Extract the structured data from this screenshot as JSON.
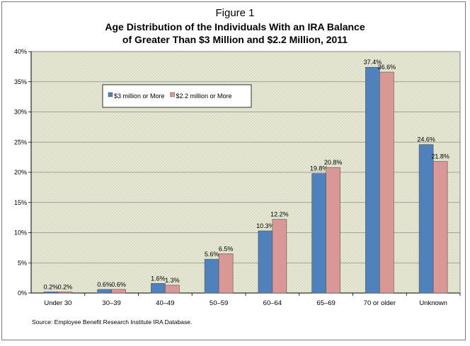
{
  "figure_label": "Figure 1",
  "title_line1": "Age Distribution of the Individuals With an IRA Balance",
  "title_line2": "of Greater Than $3 Million and $2.2 Million, 2011",
  "source": "Source: Employee Benefit Research Institute IRA Database.",
  "colors": {
    "series1": "#4f81bd",
    "series2": "#d99795",
    "plot_background": "#e8ead6"
  },
  "chart_data": {
    "type": "bar",
    "categories": [
      "Under 30",
      "30–39",
      "40–49",
      "50–59",
      "60–64",
      "65–69",
      "70 or older",
      "Unknown"
    ],
    "series": [
      {
        "name": "$3 million or More",
        "values": [
          0.2,
          0.6,
          1.6,
          5.6,
          10.3,
          19.8,
          37.4,
          24.6
        ],
        "labels": [
          "0.2%",
          "0.6%",
          "1.6%",
          "5.6%",
          "10.3%",
          "19.8%",
          "37.4%",
          "24.6%"
        ]
      },
      {
        "name": "$2.2 million or More",
        "values": [
          0.2,
          0.6,
          1.3,
          6.5,
          12.2,
          20.8,
          36.6,
          21.8
        ],
        "labels": [
          "0.2%",
          "0.6%",
          "1.3%",
          "6.5%",
          "12.2%",
          "20.8%",
          "36.6%",
          "21.8%"
        ]
      }
    ],
    "ylim": [
      0,
      40
    ],
    "yticks": [
      0,
      5,
      10,
      15,
      20,
      25,
      30,
      35,
      40
    ],
    "ytick_labels": [
      "0%",
      "5%",
      "10%",
      "15%",
      "20%",
      "25%",
      "30%",
      "35%",
      "40%"
    ],
    "grid": true,
    "legend_position": "upper-left"
  }
}
